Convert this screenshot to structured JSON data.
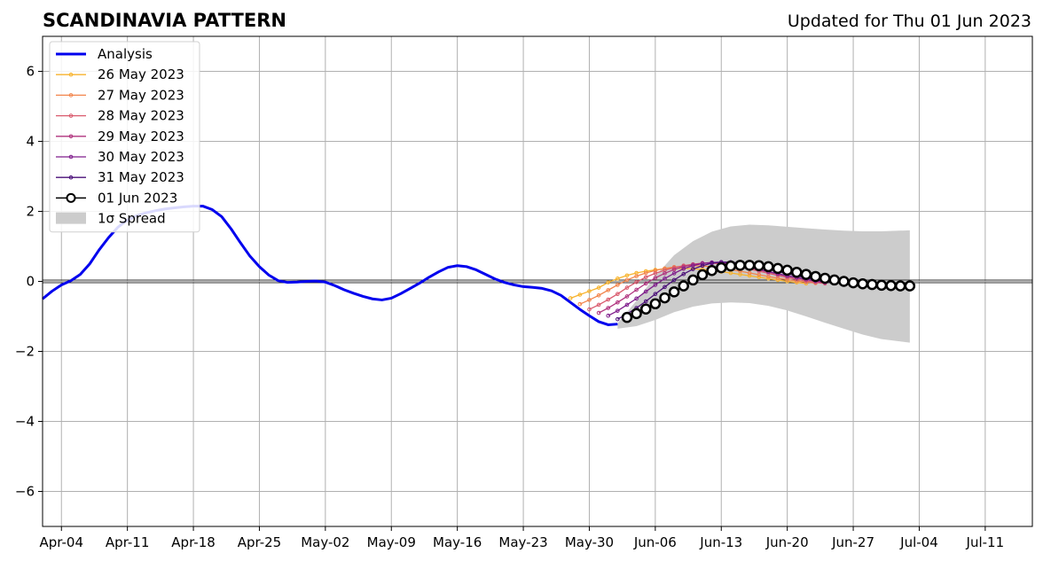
{
  "chart_data": {
    "type": "line",
    "title": "SCANDINAVIA PATTERN",
    "subtitle": "Updated for Thu 01 Jun 2023",
    "xlabel": "",
    "ylabel": "",
    "x_range": [
      "2023-04-02",
      "2023-07-16"
    ],
    "ylim": [
      -7,
      7
    ],
    "yticks": [
      -6,
      -4,
      -2,
      0,
      2,
      4,
      6
    ],
    "ytick_labels": [
      "−6",
      "−4",
      "−2",
      "0",
      "2",
      "4",
      "6"
    ],
    "xticks": [
      "2023-04-04",
      "2023-04-11",
      "2023-04-18",
      "2023-04-25",
      "2023-05-02",
      "2023-05-09",
      "2023-05-16",
      "2023-05-23",
      "2023-05-30",
      "2023-06-06",
      "2023-06-13",
      "2023-06-20",
      "2023-06-27",
      "2023-07-04",
      "2023-07-11"
    ],
    "xtick_labels": [
      "Apr-04",
      "Apr-11",
      "Apr-18",
      "Apr-25",
      "May-02",
      "May-09",
      "May-16",
      "May-23",
      "May-30",
      "Jun-06",
      "Jun-13",
      "Jun-20",
      "Jun-27",
      "Jul-04",
      "Jul-11"
    ],
    "grid": true,
    "legend_position": "top-left",
    "analysis": {
      "name": "Analysis",
      "color": "#0000ee",
      "points": [
        [
          "2023-04-02",
          -0.5
        ],
        [
          "2023-04-03",
          -0.28
        ],
        [
          "2023-04-04",
          -0.1
        ],
        [
          "2023-04-05",
          0.02
        ],
        [
          "2023-04-06",
          0.2
        ],
        [
          "2023-04-07",
          0.5
        ],
        [
          "2023-04-08",
          0.9
        ],
        [
          "2023-04-09",
          1.25
        ],
        [
          "2023-04-10",
          1.55
        ],
        [
          "2023-04-11",
          1.75
        ],
        [
          "2023-04-12",
          1.88
        ],
        [
          "2023-04-13",
          1.96
        ],
        [
          "2023-04-14",
          2.02
        ],
        [
          "2023-04-15",
          2.07
        ],
        [
          "2023-04-16",
          2.1
        ],
        [
          "2023-04-17",
          2.13
        ],
        [
          "2023-04-18",
          2.15
        ],
        [
          "2023-04-19",
          2.15
        ],
        [
          "2023-04-20",
          2.05
        ],
        [
          "2023-04-21",
          1.85
        ],
        [
          "2023-04-22",
          1.5
        ],
        [
          "2023-04-23",
          1.1
        ],
        [
          "2023-04-24",
          0.72
        ],
        [
          "2023-04-25",
          0.42
        ],
        [
          "2023-04-26",
          0.18
        ],
        [
          "2023-04-27",
          0.02
        ],
        [
          "2023-04-28",
          -0.03
        ],
        [
          "2023-04-29",
          -0.02
        ],
        [
          "2023-04-30",
          0.0
        ],
        [
          "2023-05-01",
          0.01
        ],
        [
          "2023-05-02",
          -0.02
        ],
        [
          "2023-05-03",
          -0.12
        ],
        [
          "2023-05-04",
          -0.24
        ],
        [
          "2023-05-05",
          -0.34
        ],
        [
          "2023-05-06",
          -0.43
        ],
        [
          "2023-05-07",
          -0.5
        ],
        [
          "2023-05-08",
          -0.53
        ],
        [
          "2023-05-09",
          -0.48
        ],
        [
          "2023-05-10",
          -0.35
        ],
        [
          "2023-05-11",
          -0.2
        ],
        [
          "2023-05-12",
          -0.05
        ],
        [
          "2023-05-13",
          0.12
        ],
        [
          "2023-05-14",
          0.27
        ],
        [
          "2023-05-15",
          0.4
        ],
        [
          "2023-05-16",
          0.45
        ],
        [
          "2023-05-17",
          0.42
        ],
        [
          "2023-05-18",
          0.33
        ],
        [
          "2023-05-19",
          0.2
        ],
        [
          "2023-05-20",
          0.07
        ],
        [
          "2023-05-21",
          -0.03
        ],
        [
          "2023-05-22",
          -0.1
        ],
        [
          "2023-05-23",
          -0.15
        ],
        [
          "2023-05-24",
          -0.17
        ],
        [
          "2023-05-25",
          -0.2
        ],
        [
          "2023-05-26",
          -0.27
        ],
        [
          "2023-05-27",
          -0.4
        ],
        [
          "2023-05-28",
          -0.6
        ],
        [
          "2023-05-29",
          -0.8
        ],
        [
          "2023-05-30",
          -0.98
        ],
        [
          "2023-05-31",
          -1.15
        ],
        [
          "2023-06-01",
          -1.24
        ],
        [
          "2023-06-02",
          -1.22
        ]
      ]
    },
    "forecasts": [
      {
        "name": "26 May 2023",
        "color": "#f7b32c",
        "start": "2023-05-28",
        "values": [
          -0.48,
          -0.38,
          -0.28,
          -0.18,
          -0.03,
          0.08,
          0.17,
          0.24,
          0.29,
          0.33,
          0.36,
          0.37,
          0.37,
          0.36,
          0.34,
          0.31,
          0.28,
          0.24,
          0.2,
          0.16,
          0.12,
          0.08,
          0.04,
          0.0,
          -0.03,
          -0.06
        ]
      },
      {
        "name": "27 May 2023",
        "color": "#f2844b",
        "start": "2023-05-29",
        "values": [
          -0.65,
          -0.53,
          -0.4,
          -0.25,
          -0.1,
          0.04,
          0.15,
          0.24,
          0.31,
          0.37,
          0.41,
          0.44,
          0.45,
          0.44,
          0.42,
          0.38,
          0.34,
          0.29,
          0.24,
          0.19,
          0.14,
          0.09,
          0.05,
          0.01,
          -0.02,
          -0.05
        ]
      },
      {
        "name": "28 May 2023",
        "color": "#d95a6d",
        "start": "2023-05-30",
        "values": [
          -0.8,
          -0.67,
          -0.52,
          -0.36,
          -0.18,
          -0.02,
          0.12,
          0.23,
          0.32,
          0.39,
          0.45,
          0.49,
          0.52,
          0.52,
          0.5,
          0.46,
          0.41,
          0.35,
          0.29,
          0.23,
          0.17,
          0.11,
          0.06,
          0.01,
          -0.03,
          -0.06
        ]
      },
      {
        "name": "29 May 2023",
        "color": "#b0337e",
        "start": "2023-05-31",
        "values": [
          -0.9,
          -0.76,
          -0.6,
          -0.43,
          -0.24,
          -0.06,
          0.1,
          0.23,
          0.34,
          0.42,
          0.48,
          0.52,
          0.54,
          0.53,
          0.5,
          0.45,
          0.39,
          0.33,
          0.27,
          0.21,
          0.15,
          0.1,
          0.05,
          0.0,
          -0.04
        ]
      },
      {
        "name": "30 May 2023",
        "color": "#7f1d8c",
        "start": "2023-06-01",
        "values": [
          -0.98,
          -0.84,
          -0.67,
          -0.49,
          -0.29,
          -0.1,
          0.08,
          0.23,
          0.36,
          0.45,
          0.51,
          0.54,
          0.55,
          0.52,
          0.47,
          0.41,
          0.35,
          0.28,
          0.22,
          0.16,
          0.11,
          0.06,
          0.02,
          -0.02
        ]
      },
      {
        "name": "31 May 2023",
        "color": "#4a0f78",
        "start": "2023-06-02",
        "values": [
          -1.08,
          -0.93,
          -0.76,
          -0.57,
          -0.36,
          -0.16,
          0.04,
          0.21,
          0.35,
          0.45,
          0.52,
          0.55,
          0.55,
          0.52,
          0.47,
          0.41,
          0.35,
          0.28,
          0.22,
          0.16,
          0.1,
          0.05,
          0.0,
          -0.04
        ]
      },
      {
        "name": "01 Jun 2023",
        "color": "#000000",
        "start": "2023-06-03",
        "main": true,
        "values": [
          -1.03,
          -0.92,
          -0.79,
          -0.64,
          -0.47,
          -0.3,
          -0.13,
          0.04,
          0.19,
          0.31,
          0.39,
          0.44,
          0.46,
          0.46,
          0.45,
          0.42,
          0.37,
          0.32,
          0.26,
          0.2,
          0.14,
          0.09,
          0.04,
          0.0,
          -0.04,
          -0.07,
          -0.09,
          -0.11,
          -0.12,
          -0.13,
          -0.13
        ]
      }
    ],
    "spread": {
      "name": "1σ Spread",
      "color": "#cccccc",
      "x": [
        "2023-06-02",
        "2023-06-04",
        "2023-06-06",
        "2023-06-08",
        "2023-06-10",
        "2023-06-12",
        "2023-06-14",
        "2023-06-16",
        "2023-06-18",
        "2023-06-20",
        "2023-06-22",
        "2023-06-24",
        "2023-06-26",
        "2023-06-28",
        "2023-06-30",
        "2023-07-03"
      ],
      "upper": [
        -1.2,
        -0.55,
        0.15,
        0.75,
        1.15,
        1.42,
        1.57,
        1.62,
        1.6,
        1.56,
        1.52,
        1.48,
        1.45,
        1.43,
        1.43,
        1.46
      ],
      "lower": [
        -1.35,
        -1.28,
        -1.1,
        -0.88,
        -0.72,
        -0.63,
        -0.6,
        -0.62,
        -0.7,
        -0.83,
        -1.0,
        -1.18,
        -1.35,
        -1.52,
        -1.65,
        -1.75
      ]
    }
  }
}
